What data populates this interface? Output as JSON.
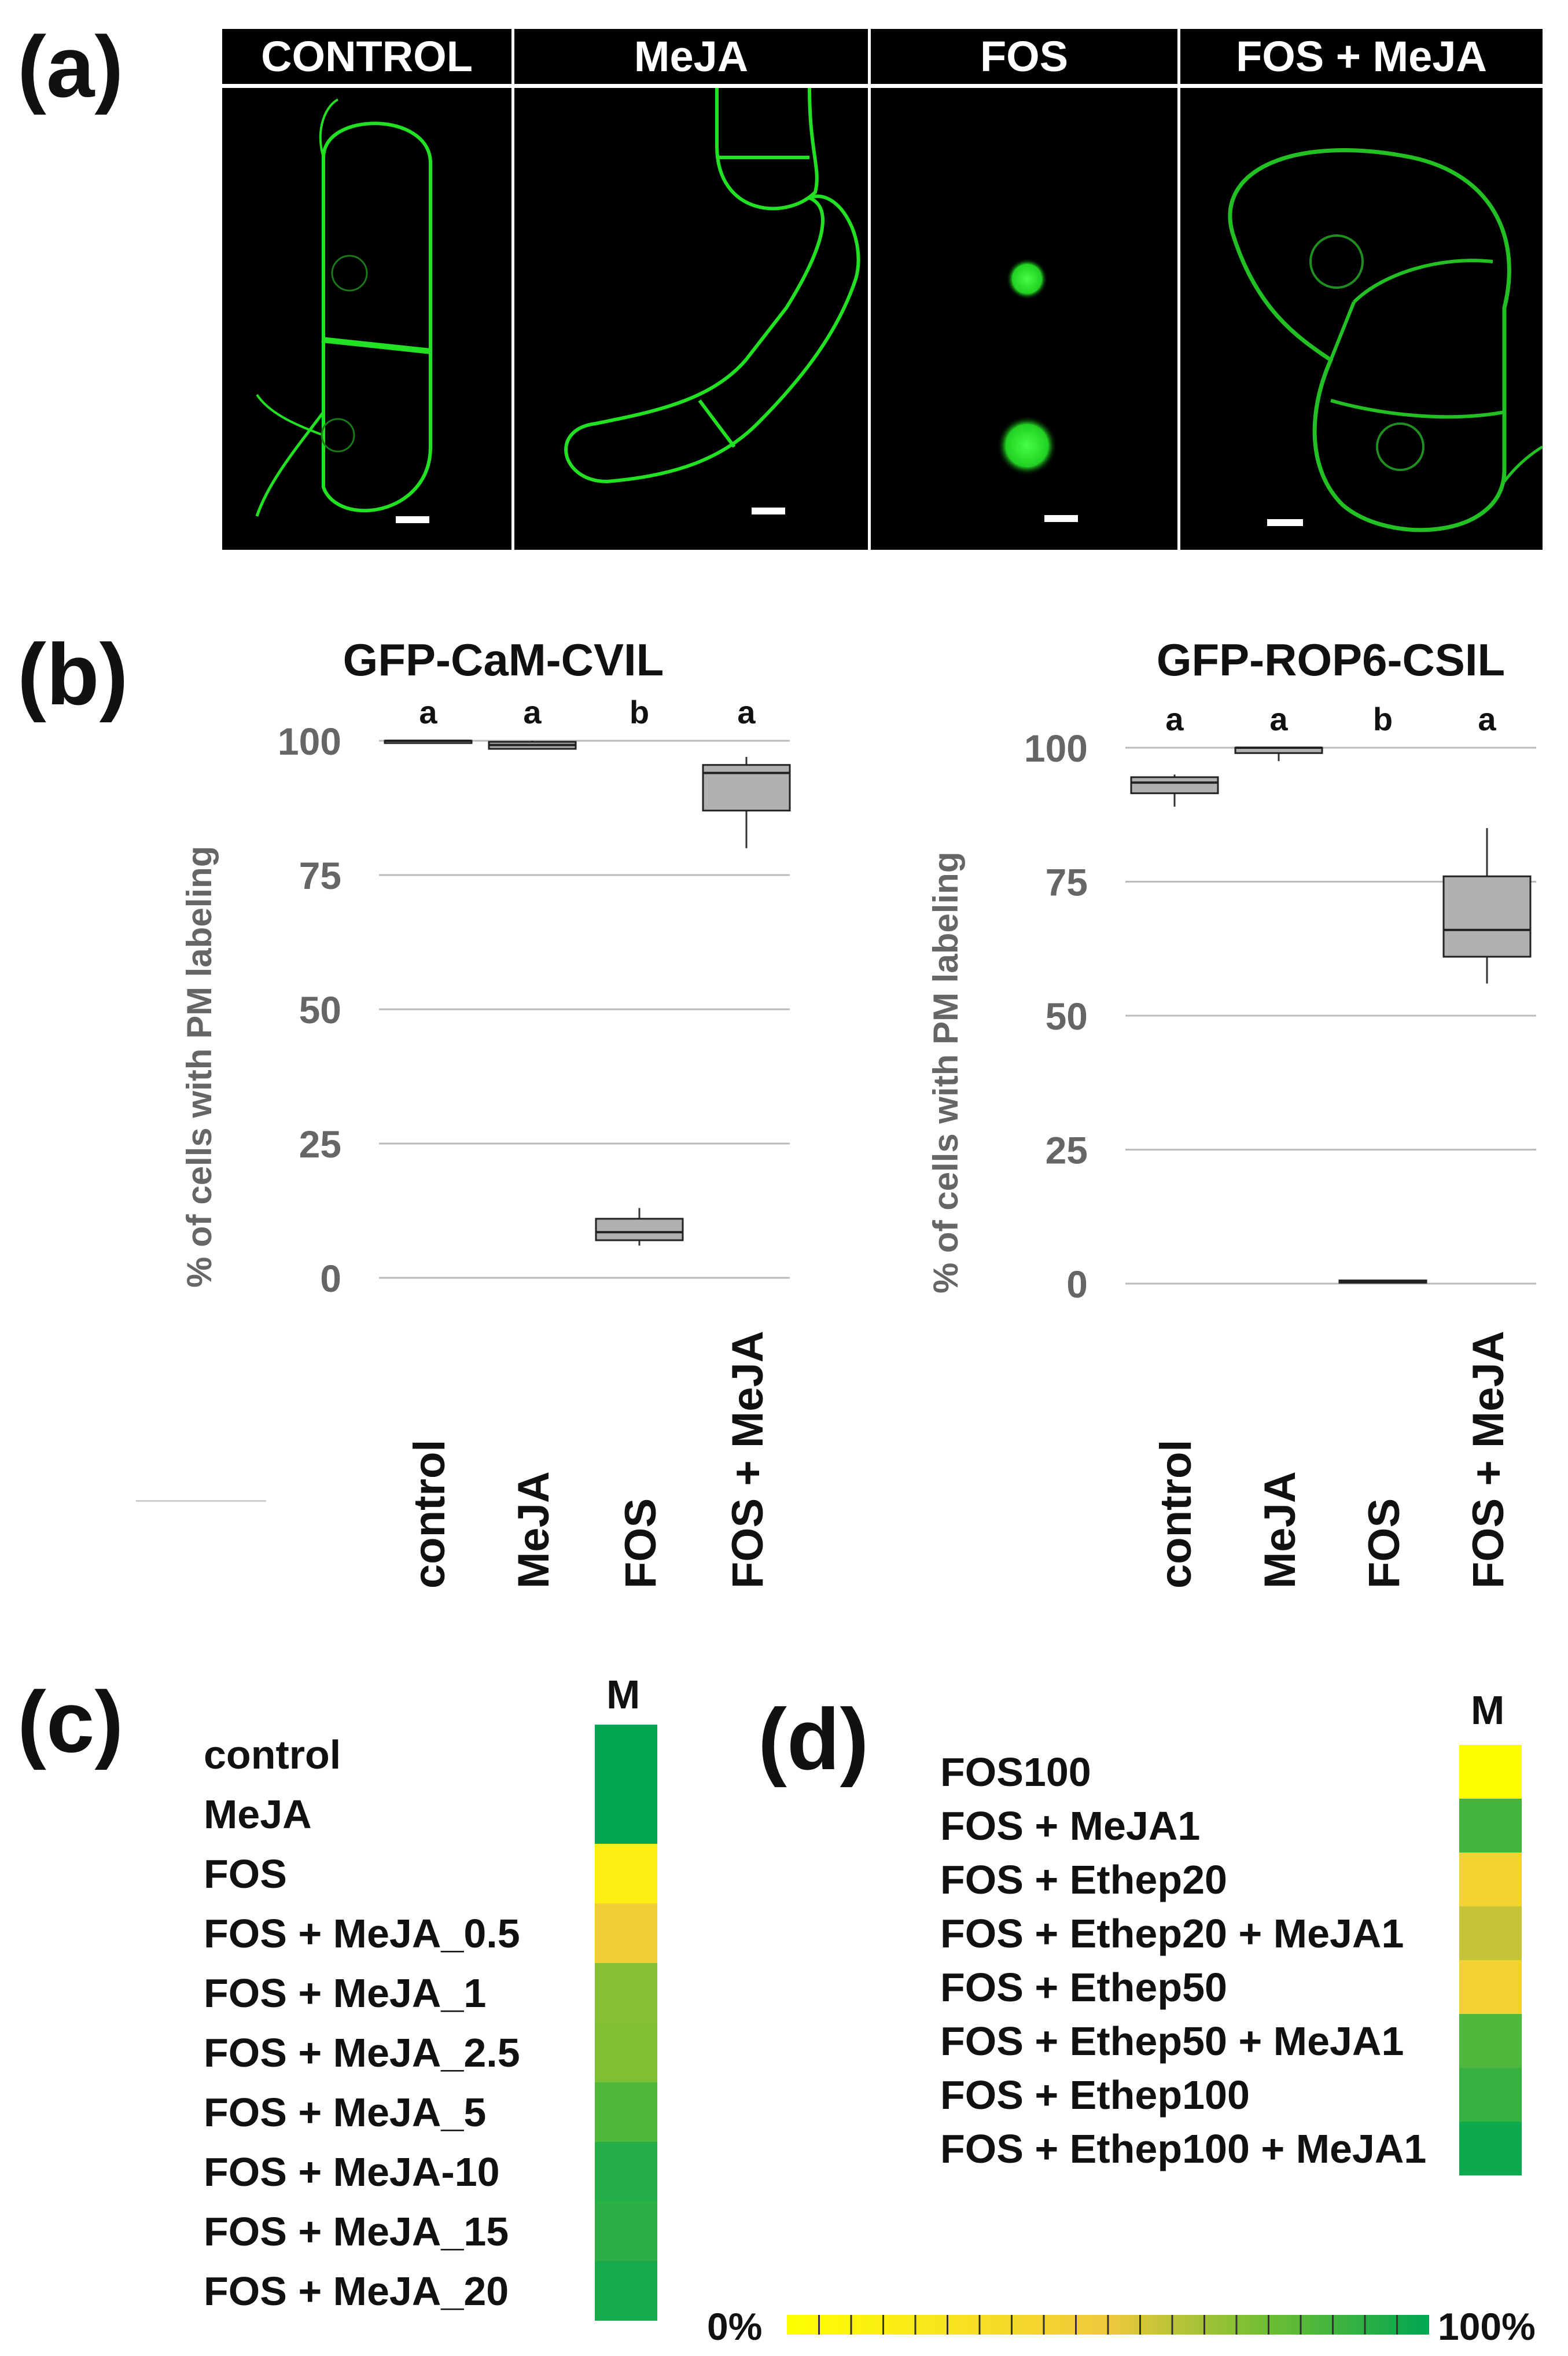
{
  "panel_labels": {
    "a": "(a)",
    "b": "(b)",
    "c": "(c)",
    "d": "(d)"
  },
  "panel_a": {
    "headers": [
      "CONTROL",
      "MeJA",
      "FOS",
      "FOS + MeJA"
    ]
  },
  "colors": {
    "gfp": "#22e022",
    "box": "#b0b0b0",
    "grid": "#bbbbbb",
    "low": "#ffff00",
    "high": "#00a651"
  },
  "chart_data": [
    {
      "type": "box",
      "title": "GFP-CaM-CVIL",
      "ylabel": "% of cells with PM labeling",
      "ylim": [
        0,
        100
      ],
      "yticks": [
        0,
        25,
        50,
        75,
        100
      ],
      "categories": [
        "control",
        "MeJA",
        "FOS",
        "FOS + MeJA"
      ],
      "letters": [
        "a",
        "a",
        "b",
        "a"
      ],
      "boxes": [
        {
          "min": 100,
          "q1": 100,
          "median": 100,
          "q3": 100,
          "max": 100
        },
        {
          "min": 98.5,
          "q1": 98.5,
          "median": 99.2,
          "q3": 99.8,
          "max": 100
        },
        {
          "min": 6,
          "q1": 7,
          "median": 8.5,
          "q3": 11,
          "max": 13
        },
        {
          "min": 80,
          "q1": 87,
          "median": 94,
          "q3": 95.5,
          "max": 97
        }
      ]
    },
    {
      "type": "box",
      "title": "GFP-ROP6-CSIL",
      "ylabel": "% of cells with PM labeling",
      "ylim": [
        0,
        100
      ],
      "yticks": [
        0,
        25,
        50,
        75,
        100
      ],
      "categories": [
        "control",
        "MeJA",
        "FOS",
        "FOS + MeJA"
      ],
      "letters": [
        "a",
        "a",
        "b",
        "a"
      ],
      "boxes": [
        {
          "min": 89,
          "q1": 91.5,
          "median": 93.5,
          "q3": 94.5,
          "max": 95
        },
        {
          "min": 97.5,
          "q1": 99,
          "median": 100,
          "q3": 100,
          "max": 100
        },
        {
          "min": 0.3,
          "q1": 0.4,
          "median": 0.5,
          "q3": 0.6,
          "max": 0.7
        },
        {
          "min": 56,
          "q1": 61,
          "median": 66,
          "q3": 76,
          "max": 85
        }
      ]
    },
    {
      "type": "heatmap",
      "column": "M",
      "rows": [
        "control",
        "MeJA",
        "FOS",
        "FOS + MeJA_0.5",
        "FOS + MeJA_1",
        "FOS + MeJA_2.5",
        "FOS + MeJA_5",
        "FOS + MeJA-10",
        "FOS + MeJA_15",
        "FOS + MeJA_20"
      ],
      "values": [
        100,
        100,
        15,
        45,
        70,
        72,
        82,
        92,
        90,
        95
      ],
      "colorbar": {
        "min_label": "0%",
        "max_label": "100%"
      }
    },
    {
      "type": "heatmap",
      "column": "M",
      "rows": [
        "FOS100",
        "FOS + MeJA1",
        "FOS + Ethep20",
        "FOS + Ethep20 + MeJA1",
        "FOS + Ethep50",
        "FOS + Ethep50 + MeJA1",
        "FOS + Ethep100",
        "FOS + Ethep100 + MeJA1"
      ],
      "values": [
        0,
        85,
        40,
        58,
        42,
        82,
        88,
        97
      ],
      "colorbar": {
        "min_label": "0%",
        "max_label": "100%"
      }
    }
  ]
}
